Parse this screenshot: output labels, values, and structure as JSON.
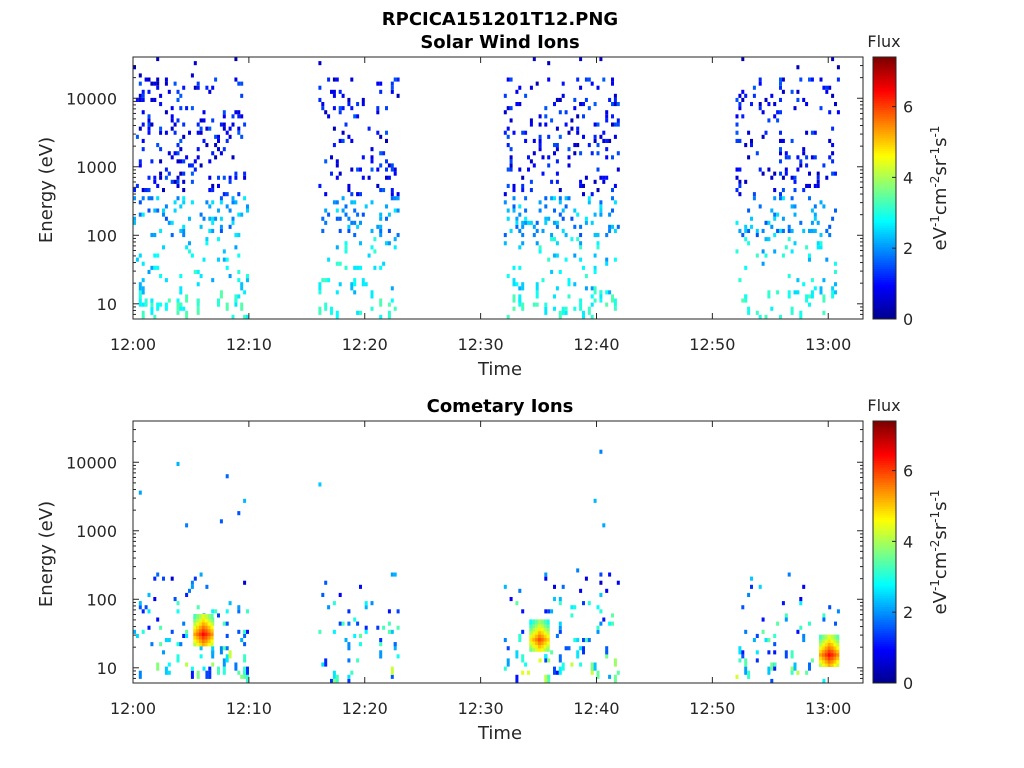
{
  "figure_title": "RPCICA151201T12.PNG",
  "colors": {
    "axis": "#262626",
    "colormap": [
      "#00008f",
      "#0000ff",
      "#0080ff",
      "#00ffff",
      "#80ff80",
      "#ffff00",
      "#ff8000",
      "#ff0000",
      "#800000"
    ]
  },
  "chart_data": [
    {
      "type": "heatmap",
      "title": "Solar Wind Ions",
      "xlabel": "Time",
      "ylabel": "Energy (eV)",
      "x_ticks": [
        "12:00",
        "12:10",
        "12:20",
        "12:30",
        "12:40",
        "12:50",
        "13:00"
      ],
      "xlim_minutes": [
        0,
        63
      ],
      "y_ticks": [
        "10",
        "100",
        "1000",
        "10000"
      ],
      "ylim": [
        6,
        40000
      ],
      "y_scale": "log",
      "colorbar": {
        "label": "Flux",
        "unit": "eV-1cm-2sr-1s-1",
        "range": [
          0,
          7.4
        ],
        "ticks": [
          "0",
          "2",
          "4",
          "6"
        ]
      },
      "bursts": [
        {
          "start": "12:00",
          "end": "12:10",
          "density": 0.42
        },
        {
          "start": "12:16",
          "end": "12:23",
          "density": 0.36
        },
        {
          "start": "12:32",
          "end": "12:42",
          "density": 0.42
        },
        {
          "start": "12:52",
          "end": "13:01",
          "density": 0.4
        }
      ],
      "profile": "solar_wind"
    },
    {
      "type": "heatmap",
      "title": "Cometary Ions",
      "xlabel": "Time",
      "ylabel": "Energy (eV)",
      "x_ticks": [
        "12:00",
        "12:10",
        "12:20",
        "12:30",
        "12:40",
        "12:50",
        "13:00"
      ],
      "xlim_minutes": [
        0,
        63
      ],
      "y_ticks": [
        "10",
        "100",
        "1000",
        "10000"
      ],
      "ylim": [
        6,
        40000
      ],
      "y_scale": "log",
      "colorbar": {
        "label": "Flux",
        "unit": "eV-1cm-2sr-1s-1",
        "range": [
          0,
          7.4
        ],
        "ticks": [
          "0",
          "2",
          "4",
          "6"
        ]
      },
      "bursts": [
        {
          "start": "12:00",
          "end": "12:10",
          "density": 0.5
        },
        {
          "start": "12:16",
          "end": "12:23",
          "density": 0.45
        },
        {
          "start": "12:32",
          "end": "12:42",
          "density": 0.5
        },
        {
          "start": "12:52",
          "end": "13:01",
          "density": 0.45
        }
      ],
      "profile": "cometary",
      "hotspots": [
        {
          "time": "12:06",
          "energy": 30,
          "flux": 6.5
        },
        {
          "time": "12:35",
          "energy": 25,
          "flux": 6.0
        },
        {
          "time": "13:00",
          "energy": 15,
          "flux": 6.5
        }
      ]
    }
  ]
}
